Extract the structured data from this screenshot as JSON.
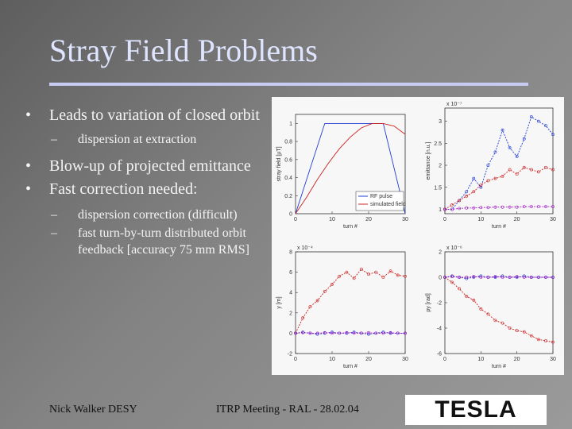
{
  "slide": {
    "title": "Stray Field Problems",
    "bullets": [
      {
        "text": "Leads to variation of closed orbit",
        "subs": [
          "dispersion at extraction"
        ]
      },
      {
        "text": "Blow-up of projected emittance",
        "subs": []
      },
      {
        "text": "Fast correction needed:",
        "subs": [
          "dispersion correction (difficult)",
          "fast turn-by-turn distributed orbit feedback [accuracy 75 mm RMS]"
        ]
      }
    ],
    "footer_left": "Nick Walker DESY",
    "footer_center": "ITRP Meeting - RAL - 28.02.04",
    "logo_text": "TESLA"
  },
  "chart_data": [
    {
      "type": "line",
      "ylabel": "stray field [μT]",
      "xlabel": "turn #",
      "xticks": [
        "0",
        "10",
        "20",
        "30"
      ],
      "yticks": [
        "0",
        "0.2",
        "0.4",
        "0.6",
        "0.8",
        "1"
      ],
      "xlim": [
        0,
        30
      ],
      "ylim": [
        0,
        1.1
      ],
      "legend": [
        "RF pulse",
        "simulated field"
      ],
      "legend_position": "bottom-right",
      "series": [
        {
          "name": "RF pulse",
          "color": "#1f3bd6",
          "x": [
            0,
            8,
            24,
            30
          ],
          "y": [
            0,
            1.0,
            1.0,
            0
          ]
        },
        {
          "name": "simulated field",
          "color": "#cc2020",
          "x": [
            0,
            3,
            6,
            9,
            12,
            15,
            18,
            21,
            24,
            27,
            30
          ],
          "y": [
            0,
            0.18,
            0.38,
            0.56,
            0.72,
            0.85,
            0.95,
            1.0,
            1.0,
            0.97,
            0.88
          ]
        }
      ]
    },
    {
      "type": "line",
      "ylabel": "emittance [n.u.]",
      "xlabel": "turn #",
      "scale_label": "x 10⁻⁷",
      "xticks": [
        "0",
        "10",
        "20",
        "30"
      ],
      "yticks": [
        "1",
        "1.5",
        "2",
        "2.5",
        "3"
      ],
      "xlim": [
        0,
        30
      ],
      "ylim": [
        0.9,
        3.3
      ],
      "series": [
        {
          "color": "#1f3bd6",
          "x": [
            0,
            2,
            4,
            6,
            8,
            10,
            12,
            14,
            16,
            18,
            20,
            22,
            24,
            26,
            28,
            30
          ],
          "y": [
            1.0,
            1.0,
            1.2,
            1.4,
            1.7,
            1.5,
            2.0,
            2.3,
            2.8,
            2.4,
            2.2,
            2.6,
            3.1,
            3.0,
            2.9,
            2.7
          ]
        },
        {
          "color": "#cc2020",
          "x": [
            0,
            2,
            4,
            6,
            8,
            10,
            12,
            14,
            16,
            18,
            20,
            22,
            24,
            26,
            28,
            30
          ],
          "y": [
            1.0,
            1.1,
            1.2,
            1.3,
            1.4,
            1.55,
            1.65,
            1.7,
            1.75,
            1.9,
            1.8,
            1.95,
            1.9,
            1.85,
            1.95,
            1.9
          ]
        },
        {
          "color": "#a020c0",
          "x": [
            0,
            2,
            4,
            6,
            8,
            10,
            12,
            14,
            16,
            18,
            20,
            22,
            24,
            26,
            28,
            30
          ],
          "y": [
            1.0,
            1.0,
            1.02,
            1.03,
            1.03,
            1.04,
            1.04,
            1.05,
            1.05,
            1.05,
            1.05,
            1.06,
            1.06,
            1.06,
            1.06,
            1.06
          ]
        }
      ]
    },
    {
      "type": "line",
      "ylabel": "y [m]",
      "xlabel": "turn #",
      "scale_label": "x 10⁻⁴",
      "xticks": [
        "0",
        "10",
        "20",
        "30"
      ],
      "yticks": [
        "-2",
        "0",
        "2",
        "4",
        "6",
        "8"
      ],
      "xlim": [
        0,
        30
      ],
      "ylim": [
        -2,
        8
      ],
      "series": [
        {
          "color": "#cc2020",
          "x": [
            0,
            2,
            4,
            6,
            8,
            10,
            12,
            14,
            16,
            18,
            20,
            22,
            24,
            26,
            28,
            30
          ],
          "y": [
            0,
            1.5,
            2.6,
            3.2,
            4.1,
            4.8,
            5.6,
            6.0,
            5.4,
            6.3,
            5.8,
            6.0,
            5.5,
            6.1,
            5.7,
            5.6
          ]
        },
        {
          "color": "#1f3bd6",
          "x": [
            0,
            2,
            4,
            6,
            8,
            10,
            12,
            14,
            16,
            18,
            20,
            22,
            24,
            26,
            28,
            30
          ],
          "y": [
            0,
            0.1,
            0,
            -0.1,
            0,
            0.1,
            0,
            0,
            0.1,
            0,
            -0.1,
            0,
            0.1,
            0,
            0,
            0
          ]
        },
        {
          "color": "#a020c0",
          "x": [
            0,
            2,
            4,
            6,
            8,
            10,
            12,
            14,
            16,
            18,
            20,
            22,
            24,
            26,
            28,
            30
          ],
          "y": [
            0,
            0.05,
            0,
            0,
            0.05,
            0,
            0,
            0.05,
            0,
            0,
            0.05,
            0,
            0,
            0.05,
            0,
            0
          ]
        }
      ]
    },
    {
      "type": "line",
      "ylabel": "py [rad]",
      "xlabel": "turn #",
      "scale_label": "x 10⁻⁶",
      "xticks": [
        "0",
        "10",
        "20",
        "30"
      ],
      "yticks": [
        "-6",
        "-4",
        "-2",
        "0",
        "2"
      ],
      "xlim": [
        0,
        30
      ],
      "ylim": [
        -6,
        2
      ],
      "series": [
        {
          "color": "#cc2020",
          "x": [
            0,
            2,
            4,
            6,
            8,
            10,
            12,
            14,
            16,
            18,
            20,
            22,
            24,
            26,
            28,
            30
          ],
          "y": [
            0,
            -0.4,
            -0.9,
            -1.5,
            -1.8,
            -2.5,
            -2.9,
            -3.4,
            -3.6,
            -4.0,
            -4.2,
            -4.3,
            -4.6,
            -4.9,
            -5.0,
            -5.1
          ]
        },
        {
          "color": "#1f3bd6",
          "x": [
            0,
            2,
            4,
            6,
            8,
            10,
            12,
            14,
            16,
            18,
            20,
            22,
            24,
            26,
            28,
            30
          ],
          "y": [
            0,
            0.1,
            0,
            -0.1,
            0,
            0.1,
            0,
            0,
            0.1,
            0,
            0,
            0.1,
            0,
            0,
            0,
            0
          ]
        },
        {
          "color": "#a020c0",
          "x": [
            0,
            2,
            4,
            6,
            8,
            10,
            12,
            14,
            16,
            18,
            20,
            22,
            24,
            26,
            28,
            30
          ],
          "y": [
            0,
            0.05,
            0,
            0,
            0.05,
            0,
            0,
            0.05,
            0,
            0,
            0.05,
            0,
            0,
            0,
            0,
            0
          ]
        }
      ]
    }
  ]
}
